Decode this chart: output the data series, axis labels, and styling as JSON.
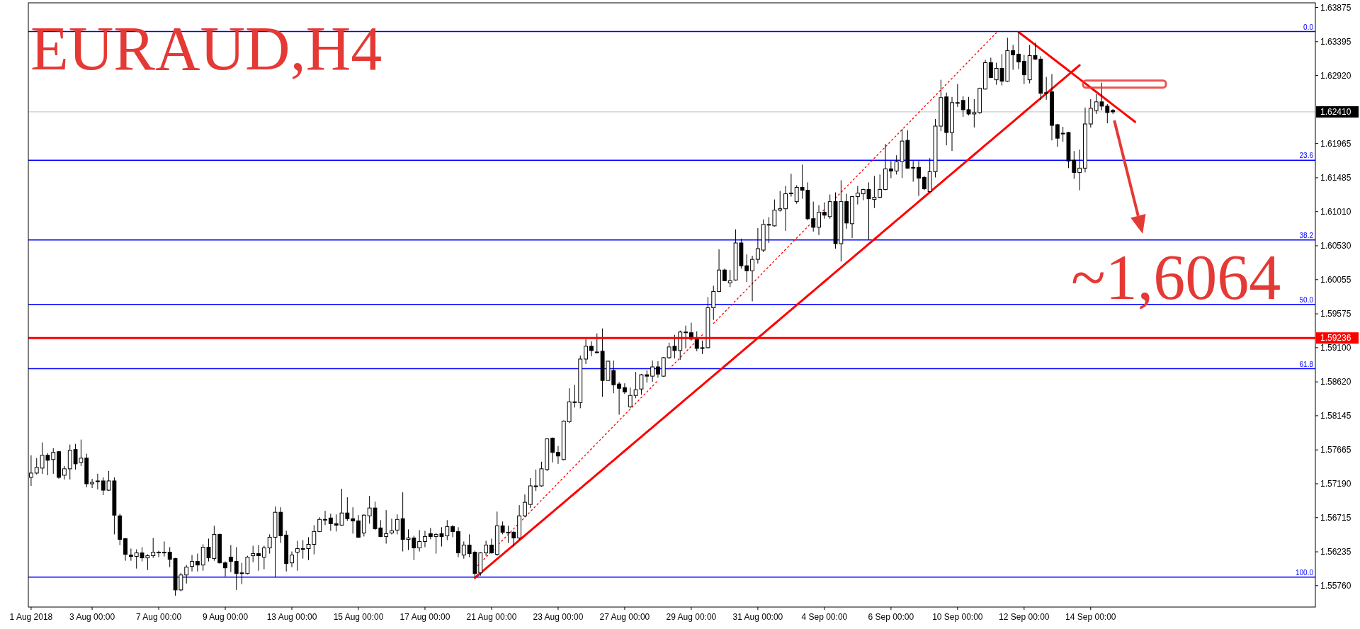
{
  "chart_data": {
    "type": "candlestick",
    "title": "EURAUD,H4",
    "categories": [
      "1 Aug 2018",
      null,
      null,
      null,
      null,
      null,
      null,
      null,
      null,
      null,
      null,
      "3 Aug 00:00",
      null,
      null,
      null,
      null,
      null,
      null,
      null,
      null,
      null,
      null,
      null,
      "7 Aug 00:00",
      null,
      null,
      null,
      null,
      null,
      null,
      null,
      null,
      null,
      null,
      null,
      "9 Aug 00:00",
      null,
      null,
      null,
      null,
      null,
      null,
      null,
      null,
      null,
      null,
      null,
      "13 Aug 00:00",
      null,
      null,
      null,
      null,
      null,
      null,
      null,
      null,
      null,
      null,
      null,
      "15 Aug 00:00",
      null,
      null,
      null,
      null,
      null,
      null,
      null,
      null,
      null,
      null,
      null,
      "17 Aug 00:00",
      null,
      null,
      null,
      null,
      null,
      null,
      null,
      null,
      null,
      null,
      null,
      "21 Aug 00:00",
      null,
      null,
      null,
      null,
      null,
      null,
      null,
      null,
      null,
      null,
      null,
      "23 Aug 00:00",
      null,
      null,
      null,
      null,
      null,
      null,
      null,
      null,
      null,
      null,
      null,
      "27 Aug 00:00",
      null,
      null,
      null,
      null,
      null,
      null,
      null,
      null,
      null,
      null,
      null,
      "29 Aug 00:00",
      null,
      null,
      null,
      null,
      null,
      null,
      null,
      null,
      null,
      null,
      null,
      "31 Aug 00:00",
      null,
      null,
      null,
      null,
      null,
      null,
      null,
      null,
      null,
      null,
      null,
      "4 Sep 00:00",
      null,
      null,
      null,
      null,
      null,
      null,
      null,
      null,
      null,
      null,
      null,
      "6 Sep 00:00",
      null,
      null,
      null,
      null,
      null,
      null,
      null,
      null,
      null,
      null,
      null,
      "10 Sep 00:00",
      null,
      null,
      null,
      null,
      null,
      null,
      null,
      null,
      null,
      null,
      null,
      "12 Sep 00:00",
      null,
      null,
      null,
      null,
      null,
      null,
      null,
      null,
      null,
      null,
      null,
      "14 Sep 00:00",
      null,
      null,
      null,
      null,
      null,
      null,
      null,
      null,
      null,
      null,
      null,
      null,
      null,
      null,
      null,
      null,
      null,
      null,
      null,
      null,
      null,
      null,
      null,
      null,
      null,
      null,
      null,
      null,
      null,
      null,
      null,
      null,
      null,
      null,
      null,
      null,
      null,
      null,
      null,
      null
    ],
    "ohlc": [
      [
        1.5728,
        1.5759,
        1.5716,
        1.5734
      ],
      [
        1.5734,
        1.5755,
        1.5732,
        1.5742
      ],
      [
        1.5741,
        1.5777,
        1.5733,
        1.5759
      ],
      [
        1.5759,
        1.5762,
        1.5731,
        1.5752
      ],
      [
        1.5753,
        1.5769,
        1.5733,
        1.5763
      ],
      [
        1.5764,
        1.5765,
        1.5726,
        1.5728
      ],
      [
        1.5731,
        1.5744,
        1.5725,
        1.574
      ],
      [
        1.574,
        1.5774,
        1.5725,
        1.5766
      ],
      [
        1.5767,
        1.5775,
        1.5739,
        1.5747
      ],
      [
        1.5749,
        1.5781,
        1.5744,
        1.5755
      ],
      [
        1.5755,
        1.5761,
        1.5714,
        1.5719
      ],
      [
        1.5719,
        1.5726,
        1.5713,
        1.5721
      ],
      [
        1.5722,
        1.5733,
        1.5711,
        1.5723
      ],
      [
        1.5723,
        1.5728,
        1.5703,
        1.571
      ],
      [
        1.571,
        1.5737,
        1.5709,
        1.5723
      ],
      [
        1.5723,
        1.5728,
        1.5648,
        1.5675
      ],
      [
        1.5674,
        1.5677,
        1.5633,
        1.5641
      ],
      [
        1.5642,
        1.5643,
        1.5611,
        1.562
      ],
      [
        1.5619,
        1.5628,
        1.5611,
        1.5617
      ],
      [
        1.5617,
        1.5627,
        1.56,
        1.5622
      ],
      [
        1.5622,
        1.563,
        1.561,
        1.5615
      ],
      [
        1.5615,
        1.562,
        1.5598,
        1.5618
      ],
      [
        1.5618,
        1.5643,
        1.5615,
        1.5623
      ],
      [
        1.5623,
        1.5625,
        1.5616,
        1.5623
      ],
      [
        1.5623,
        1.5638,
        1.5617,
        1.5622
      ],
      [
        1.5623,
        1.563,
        1.5602,
        1.5613
      ],
      [
        1.5614,
        1.5615,
        1.5562,
        1.557
      ],
      [
        1.557,
        1.5594,
        1.5568,
        1.5591
      ],
      [
        1.5591,
        1.5605,
        1.5579,
        1.5602
      ],
      [
        1.5603,
        1.5619,
        1.5596,
        1.561
      ],
      [
        1.561,
        1.5621,
        1.5596,
        1.5605
      ],
      [
        1.5605,
        1.5634,
        1.5597,
        1.563
      ],
      [
        1.563,
        1.5642,
        1.561,
        1.5615
      ],
      [
        1.5614,
        1.566,
        1.5611,
        1.5648
      ],
      [
        1.5648,
        1.5649,
        1.5607,
        1.5608
      ],
      [
        1.5608,
        1.561,
        1.5589,
        1.5601
      ],
      [
        1.5616,
        1.5633,
        1.5595,
        1.561
      ],
      [
        1.561,
        1.563,
        1.557,
        1.5593
      ],
      [
        1.5593,
        1.5608,
        1.5578,
        1.5594
      ],
      [
        1.5593,
        1.5618,
        1.5592,
        1.5616
      ],
      [
        1.5618,
        1.5632,
        1.5609,
        1.5621
      ],
      [
        1.5621,
        1.5633,
        1.5597,
        1.5618
      ],
      [
        1.5616,
        1.5632,
        1.5599,
        1.5629
      ],
      [
        1.5629,
        1.5648,
        1.5621,
        1.5644
      ],
      [
        1.5644,
        1.5687,
        1.5588,
        1.5679
      ],
      [
        1.5679,
        1.5686,
        1.5636,
        1.5646
      ],
      [
        1.5647,
        1.5653,
        1.5596,
        1.5607
      ],
      [
        1.5608,
        1.5624,
        1.5602,
        1.5619
      ],
      [
        1.5623,
        1.5639,
        1.5597,
        1.5628
      ],
      [
        1.5628,
        1.564,
        1.5614,
        1.5628
      ],
      [
        1.5628,
        1.5644,
        1.5612,
        1.5634
      ],
      [
        1.5634,
        1.5661,
        1.562,
        1.5652
      ],
      [
        1.5652,
        1.5672,
        1.5651,
        1.5669
      ],
      [
        1.5669,
        1.5681,
        1.5661,
        1.5669
      ],
      [
        1.5671,
        1.5677,
        1.5653,
        1.5663
      ],
      [
        1.5663,
        1.5676,
        1.5652,
        1.5661
      ],
      [
        1.5661,
        1.5712,
        1.566,
        1.5678
      ],
      [
        1.5678,
        1.57,
        1.5667,
        1.567
      ],
      [
        1.567,
        1.5686,
        1.5649,
        1.5667
      ],
      [
        1.5667,
        1.5675,
        1.5643,
        1.5644
      ],
      [
        1.565,
        1.5676,
        1.5645,
        1.5675
      ],
      [
        1.5674,
        1.5702,
        1.5663,
        1.5685
      ],
      [
        1.5685,
        1.5694,
        1.5654,
        1.5656
      ],
      [
        1.5657,
        1.5668,
        1.5644,
        1.5645
      ],
      [
        1.5645,
        1.5682,
        1.5635,
        1.5649
      ],
      [
        1.565,
        1.567,
        1.5648,
        1.5653
      ],
      [
        1.5654,
        1.5676,
        1.5648,
        1.5669
      ],
      [
        1.567,
        1.5707,
        1.5624,
        1.5641
      ],
      [
        1.5641,
        1.5655,
        1.5626,
        1.5643
      ],
      [
        1.5643,
        1.5646,
        1.5612,
        1.5629
      ],
      [
        1.5629,
        1.5654,
        1.5624,
        1.5638
      ],
      [
        1.5638,
        1.5653,
        1.563,
        1.5645
      ],
      [
        1.5649,
        1.5657,
        1.5641,
        1.5645
      ],
      [
        1.5645,
        1.565,
        1.5621,
        1.5648
      ],
      [
        1.5649,
        1.5658,
        1.5631,
        1.5645
      ],
      [
        1.5646,
        1.5668,
        1.564,
        1.5659
      ],
      [
        1.5659,
        1.5661,
        1.5644,
        1.5652
      ],
      [
        1.5652,
        1.5658,
        1.5616,
        1.5622
      ],
      [
        1.5619,
        1.5638,
        1.5614,
        1.5633
      ],
      [
        1.5633,
        1.5648,
        1.5616,
        1.5621
      ],
      [
        1.5623,
        1.5625,
        1.5588,
        1.5593
      ],
      [
        1.5594,
        1.5623,
        1.559,
        1.5622
      ],
      [
        1.5622,
        1.5639,
        1.5618,
        1.5633
      ],
      [
        1.5633,
        1.5642,
        1.5621,
        1.5622
      ],
      [
        1.562,
        1.568,
        1.5618,
        1.566
      ],
      [
        1.566,
        1.5666,
        1.5648,
        1.5651
      ],
      [
        1.5651,
        1.566,
        1.5636,
        1.5651
      ],
      [
        1.5651,
        1.5653,
        1.5631,
        1.5643
      ],
      [
        1.5643,
        1.5689,
        1.564,
        1.5674
      ],
      [
        1.5674,
        1.5704,
        1.5672,
        1.5693
      ],
      [
        1.569,
        1.5727,
        1.5685,
        1.5716
      ],
      [
        1.5716,
        1.5739,
        1.5709,
        1.5716
      ],
      [
        1.5716,
        1.575,
        1.5715,
        1.574
      ],
      [
        1.5739,
        1.5783,
        1.5737,
        1.5782
      ],
      [
        1.5783,
        1.5784,
        1.5749,
        1.5763
      ],
      [
        1.5763,
        1.5772,
        1.5747,
        1.5758
      ],
      [
        1.5753,
        1.5808,
        1.5752,
        1.5807
      ],
      [
        1.5806,
        1.5853,
        1.5804,
        1.5834
      ],
      [
        1.5834,
        1.5858,
        1.5826,
        1.5834
      ],
      [
        1.5833,
        1.5899,
        1.5825,
        1.5894
      ],
      [
        1.5894,
        1.5922,
        1.5887,
        1.5912
      ],
      [
        1.5912,
        1.5919,
        1.5898,
        1.5906
      ],
      [
        1.5904,
        1.593,
        1.5902,
        1.5904
      ],
      [
        1.5905,
        1.5937,
        1.5841,
        1.5864
      ],
      [
        1.5864,
        1.5892,
        1.5863,
        1.5891
      ],
      [
        1.5878,
        1.5892,
        1.5846,
        1.5858
      ],
      [
        1.5859,
        1.5862,
        1.5816,
        1.5853
      ],
      [
        1.5854,
        1.586,
        1.5845,
        1.5848
      ],
      [
        1.5827,
        1.5854,
        1.5825,
        1.5843
      ],
      [
        1.5843,
        1.5876,
        1.5839,
        1.5851
      ],
      [
        1.5852,
        1.5873,
        1.5844,
        1.5872
      ],
      [
        1.5872,
        1.5878,
        1.5861,
        1.587
      ],
      [
        1.587,
        1.5892,
        1.5862,
        1.5883
      ],
      [
        1.5883,
        1.5891,
        1.5868,
        1.5873
      ],
      [
        1.587,
        1.5897,
        1.5869,
        1.5896
      ],
      [
        1.5896,
        1.5917,
        1.5894,
        1.5911
      ],
      [
        1.5912,
        1.5928,
        1.5895,
        1.5906
      ],
      [
        1.5906,
        1.5934,
        1.5893,
        1.5932
      ],
      [
        1.5932,
        1.5941,
        1.5909,
        1.5932
      ],
      [
        1.5931,
        1.5945,
        1.592,
        1.5922
      ],
      [
        1.5923,
        1.5933,
        1.5905,
        1.5909
      ],
      [
        1.591,
        1.592,
        1.5901,
        1.591
      ],
      [
        1.591,
        1.5981,
        1.5909,
        1.5966
      ],
      [
        1.5966,
        1.5997,
        1.5949,
        1.5989
      ],
      [
        1.5989,
        1.6048,
        1.5988,
        1.6019
      ],
      [
        1.6019,
        1.6021,
        1.6004,
        1.6004
      ],
      [
        1.6001,
        1.6019,
        1.5995,
        1.6004
      ],
      [
        1.6005,
        1.6076,
        1.6004,
        1.6057
      ],
      [
        1.6057,
        1.6063,
        1.6021,
        1.6025
      ],
      [
        1.6025,
        1.6041,
        1.6002,
        1.6018
      ],
      [
        1.6018,
        1.6039,
        1.5975,
        1.6034
      ],
      [
        1.6034,
        1.6078,
        1.6028,
        1.6049
      ],
      [
        1.6047,
        1.609,
        1.6044,
        1.6083
      ],
      [
        1.6083,
        1.6093,
        1.6057,
        1.6083
      ],
      [
        1.6081,
        1.6118,
        1.608,
        1.6103
      ],
      [
        1.6103,
        1.613,
        1.6101,
        1.6105
      ],
      [
        1.6105,
        1.6137,
        1.6074,
        1.6126
      ],
      [
        1.6127,
        1.6154,
        1.6122,
        1.6126
      ],
      [
        1.6115,
        1.6138,
        1.6112,
        1.6135
      ],
      [
        1.6135,
        1.6167,
        1.6119,
        1.6131
      ],
      [
        1.6131,
        1.6142,
        1.6089,
        1.6091
      ],
      [
        1.6091,
        1.6115,
        1.6073,
        1.6079
      ],
      [
        1.6079,
        1.611,
        1.6068,
        1.61
      ],
      [
        1.61,
        1.6114,
        1.6091,
        1.6096
      ],
      [
        1.6094,
        1.6125,
        1.6091,
        1.6115
      ],
      [
        1.6115,
        1.6128,
        1.6049,
        1.6056
      ],
      [
        1.6056,
        1.6145,
        1.6031,
        1.6115
      ],
      [
        1.6115,
        1.6126,
        1.6077,
        1.6085
      ],
      [
        1.6084,
        1.6123,
        1.6064,
        1.6122
      ],
      [
        1.6122,
        1.6137,
        1.6111,
        1.6127
      ],
      [
        1.6126,
        1.6133,
        1.6117,
        1.6132
      ],
      [
        1.6132,
        1.6142,
        1.6062,
        1.6119
      ],
      [
        1.6118,
        1.6151,
        1.6106,
        1.6121
      ],
      [
        1.6121,
        1.6153,
        1.612,
        1.6132
      ],
      [
        1.6132,
        1.6196,
        1.6131,
        1.6161
      ],
      [
        1.6161,
        1.6172,
        1.6148,
        1.6158
      ],
      [
        1.6158,
        1.618,
        1.6153,
        1.6171
      ],
      [
        1.6171,
        1.6217,
        1.6148,
        1.62
      ],
      [
        1.6201,
        1.6215,
        1.6161,
        1.6162
      ],
      [
        1.6163,
        1.6172,
        1.6143,
        1.6163
      ],
      [
        1.6163,
        1.6172,
        1.6123,
        1.6148
      ],
      [
        1.6149,
        1.6151,
        1.6131,
        1.6133
      ],
      [
        1.6129,
        1.6176,
        1.6127,
        1.6157
      ],
      [
        1.6157,
        1.6231,
        1.6149,
        1.6221
      ],
      [
        1.6221,
        1.6286,
        1.6214,
        1.6261
      ],
      [
        1.6262,
        1.6268,
        1.6194,
        1.6212
      ],
      [
        1.6212,
        1.6262,
        1.6186,
        1.6254
      ],
      [
        1.6254,
        1.628,
        1.6248,
        1.6254
      ],
      [
        1.6257,
        1.6263,
        1.6234,
        1.6244
      ],
      [
        1.6244,
        1.6262,
        1.6236,
        1.6238
      ],
      [
        1.6238,
        1.6259,
        1.6219,
        1.624
      ],
      [
        1.624,
        1.6275,
        1.6238,
        1.6274
      ],
      [
        1.6273,
        1.6314,
        1.6272,
        1.631
      ],
      [
        1.631,
        1.6317,
        1.6289,
        1.6289
      ],
      [
        1.6286,
        1.631,
        1.6279,
        1.6302
      ],
      [
        1.6302,
        1.6322,
        1.6278,
        1.6284
      ],
      [
        1.6284,
        1.6345,
        1.6283,
        1.6327
      ],
      [
        1.6327,
        1.6335,
        1.63,
        1.6321
      ],
      [
        1.6322,
        1.6354,
        1.6301,
        1.6311
      ],
      [
        1.6312,
        1.6321,
        1.628,
        1.6293
      ],
      [
        1.6286,
        1.6335,
        1.6281,
        1.632
      ],
      [
        1.632,
        1.6338,
        1.6314,
        1.6315
      ],
      [
        1.6315,
        1.6319,
        1.6258,
        1.6267
      ],
      [
        1.6268,
        1.629,
        1.6258,
        1.6268
      ],
      [
        1.6269,
        1.6294,
        1.6201,
        1.6222
      ],
      [
        1.6223,
        1.6224,
        1.6192,
        1.6204
      ],
      [
        1.6211,
        1.622,
        1.6199,
        1.6211
      ],
      [
        1.6212,
        1.6213,
        1.6162,
        1.6172
      ],
      [
        1.6173,
        1.6186,
        1.6147,
        1.6156
      ],
      [
        1.6156,
        1.6188,
        1.6131,
        1.6162
      ],
      [
        1.6162,
        1.6247,
        1.6156,
        1.6224
      ],
      [
        1.6224,
        1.6259,
        1.6219,
        1.6246
      ],
      [
        1.6243,
        1.6266,
        1.6238,
        1.6255
      ],
      [
        1.6255,
        1.6282,
        1.6243,
        1.6249
      ],
      [
        1.6249,
        1.6252,
        1.6225,
        1.624
      ],
      [
        1.6243,
        1.6245,
        1.6238,
        1.6241
      ],
      null,
      null,
      null,
      null,
      null,
      null,
      null,
      null,
      null,
      null,
      null,
      null,
      null,
      null,
      null,
      null,
      null,
      null,
      null,
      null,
      null,
      null,
      null,
      null,
      null,
      null,
      null,
      null,
      null,
      null,
      null,
      null,
      null,
      null,
      null,
      null
    ],
    "series": [
      {
        "type": "line",
        "color": "#ff0000",
        "line_style": "solid",
        "values": [
          null,
          null,
          null,
          null,
          null,
          null,
          null,
          null,
          null,
          null,
          null,
          null,
          null,
          null,
          null,
          null,
          null,
          null,
          null,
          null,
          null,
          null,
          null,
          null,
          null,
          null,
          null,
          null,
          null,
          null,
          null,
          null,
          null,
          null,
          null,
          null,
          null,
          null,
          null,
          null,
          null,
          null,
          null,
          null,
          null,
          null,
          null,
          null,
          null,
          null,
          null,
          null,
          null,
          null,
          null,
          null,
          null,
          null,
          null,
          null,
          null,
          null,
          null,
          null,
          null,
          null,
          null,
          null,
          null,
          null,
          null,
          null,
          null,
          null,
          null,
          null,
          null,
          null,
          null,
          null,
          1.5587,
          1.55936,
          1.56002,
          1.56068,
          1.56134,
          1.562,
          1.56266,
          1.56332,
          1.56398,
          1.56464,
          1.5653,
          1.56596,
          1.56662,
          1.56728,
          1.56794,
          1.5686,
          1.56926,
          1.56992,
          1.57058,
          1.57124,
          1.5719,
          1.57256,
          1.57322,
          1.57388,
          1.57454,
          1.5752,
          1.57586,
          1.57652,
          1.57718,
          1.57784,
          1.5785,
          1.57916,
          1.57982,
          1.58048,
          1.58114,
          1.5818,
          1.58246,
          1.58312,
          1.58378,
          1.58444,
          1.5851,
          1.58576,
          1.58642,
          1.58708,
          1.58774,
          1.5884,
          1.58906,
          1.58972,
          1.59038,
          1.59104,
          1.5917,
          1.59236,
          1.59302,
          1.59368,
          1.59434,
          1.595,
          1.59566,
          1.59632,
          1.59698,
          1.59764,
          1.5983,
          1.59896,
          1.59962,
          1.60028,
          1.60094,
          1.6016,
          1.60226,
          1.60292,
          1.60358,
          1.60424,
          1.6049,
          1.60556,
          1.60622,
          1.60688,
          1.60754,
          1.6082,
          1.60886,
          1.60952,
          1.61018,
          1.61084,
          1.6115,
          1.61216,
          1.61282,
          1.61348,
          1.61414,
          1.6148,
          1.61546,
          1.61612,
          1.61678,
          1.61744,
          1.6181,
          1.61876,
          1.61942,
          1.62008,
          1.62074,
          1.6214,
          1.62206,
          1.62272,
          1.62338,
          1.62404,
          1.6247,
          1.62536,
          1.62602,
          1.62668,
          1.62734,
          1.628,
          1.62866,
          1.62932,
          1.62998,
          1.63064,
          null,
          null,
          null,
          null,
          null,
          null,
          null,
          null,
          null,
          null,
          null,
          null,
          null,
          null,
          null,
          null,
          null,
          null,
          null,
          null,
          null,
          null,
          null,
          null,
          null,
          null,
          null,
          null,
          null,
          null,
          null,
          null,
          null,
          null,
          null,
          null,
          null,
          null,
          null,
          null,
          null,
          null
        ]
      },
      {
        "type": "line",
        "color": "#ff0000",
        "line_style": "dotted",
        "values": [
          null,
          null,
          null,
          null,
          null,
          null,
          null,
          null,
          null,
          null,
          null,
          null,
          null,
          null,
          null,
          null,
          null,
          null,
          null,
          null,
          null,
          null,
          null,
          null,
          null,
          null,
          null,
          null,
          null,
          null,
          null,
          null,
          null,
          null,
          null,
          null,
          null,
          null,
          null,
          null,
          null,
          null,
          null,
          null,
          null,
          null,
          null,
          null,
          null,
          null,
          null,
          null,
          null,
          null,
          null,
          null,
          null,
          null,
          null,
          null,
          null,
          null,
          null,
          null,
          null,
          null,
          null,
          null,
          null,
          null,
          null,
          null,
          null,
          null,
          null,
          null,
          null,
          null,
          null,
          null,
          1.56,
          1.5608,
          1.5616,
          1.5624,
          1.5632,
          1.564,
          1.5648,
          1.5656,
          1.5664,
          1.5672,
          1.568,
          1.5688,
          1.5696,
          1.5704,
          1.5712,
          1.572,
          1.5728,
          1.5736,
          1.5744,
          1.5752,
          1.576,
          1.5768,
          1.5776,
          1.5784,
          1.5792,
          1.58,
          1.5808,
          1.5816,
          1.5824,
          1.5832,
          1.584,
          1.5848,
          1.5856,
          1.5864,
          null,
          1.588,
          1.5888,
          1.5896,
          1.5904,
          1.5912,
          1.592,
          1.5928,
          null,
          1.5944,
          1.5952,
          1.596,
          1.5968,
          1.5976,
          1.5984,
          1.5992,
          1.6,
          1.6008,
          1.6016,
          1.6024,
          1.6032,
          1.604,
          1.6048,
          1.6056,
          1.6064,
          1.6072,
          1.608,
          1.6088,
          1.6096,
          1.6104,
          null,
          1.612,
          1.6128,
          1.6136,
          1.6144,
          1.6152,
          1.616,
          1.6168,
          1.6176,
          1.6184,
          1.6192,
          1.62,
          1.6208,
          1.6216,
          1.6224,
          1.6232,
          1.624,
          1.6248,
          1.6256,
          1.6264,
          1.6272,
          1.628,
          1.6288,
          1.6296,
          1.6304,
          1.6312,
          1.632,
          1.6328,
          1.6336,
          1.6344,
          1.6352,
          null,
          null,
          null,
          null,
          null,
          null,
          null,
          null,
          null,
          null,
          null,
          null,
          null,
          null,
          null,
          null,
          null,
          null,
          null,
          null,
          null,
          null,
          null,
          null,
          null,
          null,
          null,
          null,
          null,
          null,
          null,
          null,
          null,
          null,
          null,
          null,
          null,
          null,
          null,
          null,
          null,
          null,
          null,
          null,
          null,
          null,
          null,
          null,
          null,
          null,
          null,
          null,
          null,
          null,
          null,
          null,
          null
        ]
      },
      {
        "type": "line",
        "color": "#ff0000",
        "line_style": "solid",
        "values": [
          null,
          null,
          null,
          null,
          null,
          null,
          null,
          null,
          null,
          null,
          null,
          null,
          null,
          null,
          null,
          null,
          null,
          null,
          null,
          null,
          null,
          null,
          null,
          null,
          null,
          null,
          null,
          null,
          null,
          null,
          null,
          null,
          null,
          null,
          null,
          null,
          null,
          null,
          null,
          null,
          null,
          null,
          null,
          null,
          null,
          null,
          null,
          null,
          null,
          null,
          null,
          null,
          null,
          null,
          null,
          null,
          null,
          null,
          null,
          null,
          null,
          null,
          null,
          null,
          null,
          null,
          null,
          null,
          null,
          null,
          null,
          null,
          null,
          null,
          null,
          null,
          null,
          null,
          null,
          null,
          null,
          null,
          null,
          null,
          null,
          null,
          null,
          null,
          null,
          null,
          null,
          null,
          null,
          null,
          null,
          null,
          null,
          null,
          null,
          null,
          null,
          null,
          null,
          null,
          null,
          null,
          null,
          null,
          null,
          null,
          null,
          null,
          null,
          null,
          null,
          null,
          null,
          null,
          null,
          null,
          null,
          null,
          null,
          null,
          null,
          null,
          null,
          null,
          null,
          null,
          null,
          null,
          null,
          null,
          null,
          null,
          null,
          null,
          null,
          null,
          null,
          null,
          null,
          null,
          null,
          null,
          null,
          null,
          null,
          null,
          null,
          null,
          null,
          null,
          null,
          null,
          null,
          null,
          null,
          null,
          null,
          null,
          null,
          null,
          null,
          null,
          null,
          null,
          null,
          null,
          null,
          null,
          null,
          null,
          null,
          null,
          null,
          null,
          1.6353,
          1.6347,
          1.6341,
          1.6335,
          1.6329,
          1.6323,
          1.6317,
          1.6311,
          1.6305,
          1.6299,
          1.6293,
          1.6287,
          1.6281,
          1.6275,
          1.6269,
          1.6263,
          1.6257,
          1.6251,
          1.6245,
          1.6239,
          1.6233,
          1.6227,
          null,
          null,
          null,
          null,
          null,
          null,
          null,
          null,
          null,
          null,
          null,
          null,
          null,
          null,
          null,
          null,
          null,
          null,
          null,
          null,
          null,
          null,
          null,
          null,
          null,
          null,
          null,
          null,
          null,
          null,
          null,
          null
        ]
      }
    ],
    "ref_lines": [
      {
        "axis": "y",
        "value": 1.63537,
        "color": "#0000ff"
      },
      {
        "axis": "y",
        "value": 1.6173,
        "color": "#0000ff"
      },
      {
        "axis": "y",
        "value": 1.60612,
        "color": "#0000ff"
      },
      {
        "axis": "y",
        "value": 1.59708,
        "color": "#0000ff"
      },
      {
        "axis": "y",
        "value": 1.58805,
        "color": "#0000ff"
      },
      {
        "axis": "y",
        "value": 1.55879,
        "color": "#0000ff"
      },
      {
        "axis": "y",
        "value": 1.6241,
        "label": "1.62410",
        "color": "#c0c0c0"
      },
      {
        "axis": "y",
        "value": 1.59236,
        "label": "1.59236",
        "color": "#ff0000"
      }
    ],
    "annotations": [
      {
        "text": "0.0",
        "y": 1.63537
      },
      {
        "text": "23.6",
        "y": 1.6173
      },
      {
        "text": "38.2",
        "y": 1.60612
      },
      {
        "text": "50.0",
        "y": 1.59708
      },
      {
        "text": "61.8",
        "y": 1.58805
      },
      {
        "text": "100.0",
        "y": 1.55879
      },
      {
        "text": "~1,6064",
        "y": 1.6064
      }
    ],
    "ylim": [
      1.5546,
      1.6394
    ],
    "yticks": [
      1.63875,
      1.63395,
      {
        "value": 1.6292,
        "label": "1.62920"
      },
      1.61965,
      1.61485,
      {
        "value": 1.6101,
        "label": "1.61010"
      },
      {
        "value": 1.6053,
        "label": "1.60530"
      },
      1.60055,
      1.59575,
      {
        "value": 1.591,
        "label": "1.59100"
      },
      {
        "value": 1.5862,
        "label": "1.58620"
      },
      1.58145,
      1.57665,
      {
        "value": 1.5719,
        "label": "1.57190"
      },
      1.56715,
      1.56235,
      {
        "value": 1.5576,
        "label": "1.55760"
      }
    ],
    "grid": false
  }
}
